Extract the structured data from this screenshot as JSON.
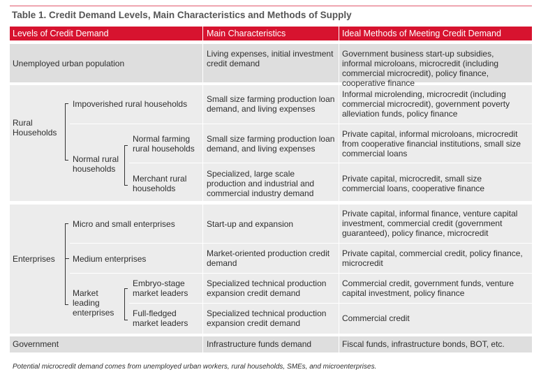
{
  "title": "Table 1. Credit Demand Levels, Main Characteristics and Methods of Supply",
  "headers": [
    "Levels of Credit Demand",
    "Main Characteristics",
    "Ideal Methods of Meeting Credit Demand"
  ],
  "rows": {
    "unemployed": {
      "level": "Unemployed urban population",
      "characteristics": "Living expenses, initial investment credit demand",
      "methods": "Government business start-up subsidies, informal microloans, microcredit (including commercial microcredit), policy finance, cooperative finance"
    },
    "rural": {
      "level": "Rural Households",
      "impoverished": {
        "level": "Impoverished rural households",
        "characteristics": "Small size farming production loan demand, and living expenses",
        "methods": "Informal microlending, microcredit (including commercial microcredit), government poverty alleviation funds, policy finance"
      },
      "normal": {
        "level": "Normal rural households",
        "farming": {
          "level": "Normal farming rural households",
          "characteristics": "Small size farming production loan demand, and living expenses",
          "methods": "Private capital, informal microloans, microcredit from cooperative financial institutions, small size commercial loans"
        },
        "merchant": {
          "level": "Merchant rural households",
          "characteristics": "Specialized, large scale production and industrial and commercial industry demand",
          "methods": "Private capital, microcredit, small size commercial loans, cooperative finance"
        }
      }
    },
    "enterprises": {
      "level": "Enterprises",
      "micro": {
        "level": "Micro and small enterprises",
        "characteristics": "Start-up and expansion",
        "methods": "Private capital, informal finance, venture capital investment, commercial credit (government guaranteed), policy finance, microcredit"
      },
      "medium": {
        "level": "Medium enterprises",
        "characteristics": "Market-oriented production credit demand",
        "methods": "Private capital, commercial credit, policy finance, microcredit"
      },
      "leading": {
        "level": "Market leading enterprises",
        "embryo": {
          "level": "Embryo-stage market leaders",
          "characteristics": "Specialized technical production expansion credit demand",
          "methods": "Commercial credit, government funds, venture capital investment, policy finance"
        },
        "fledged": {
          "level": "Full-fledged market leaders",
          "characteristics": "Specialized technical production expansion credit demand",
          "methods": "Commercial credit"
        }
      }
    },
    "government": {
      "level": "Government",
      "characteristics": "Infrastructure funds demand",
      "methods": "Fiscal funds, infrastructure bonds, BOT, etc."
    }
  },
  "footnote": "Potential microcredit demand comes from unemployed urban workers, rural households, SMEs, and microenterprises.",
  "colors": {
    "header": "#d7132f",
    "dark_row": "#dedede",
    "light_row": "#ececec"
  }
}
